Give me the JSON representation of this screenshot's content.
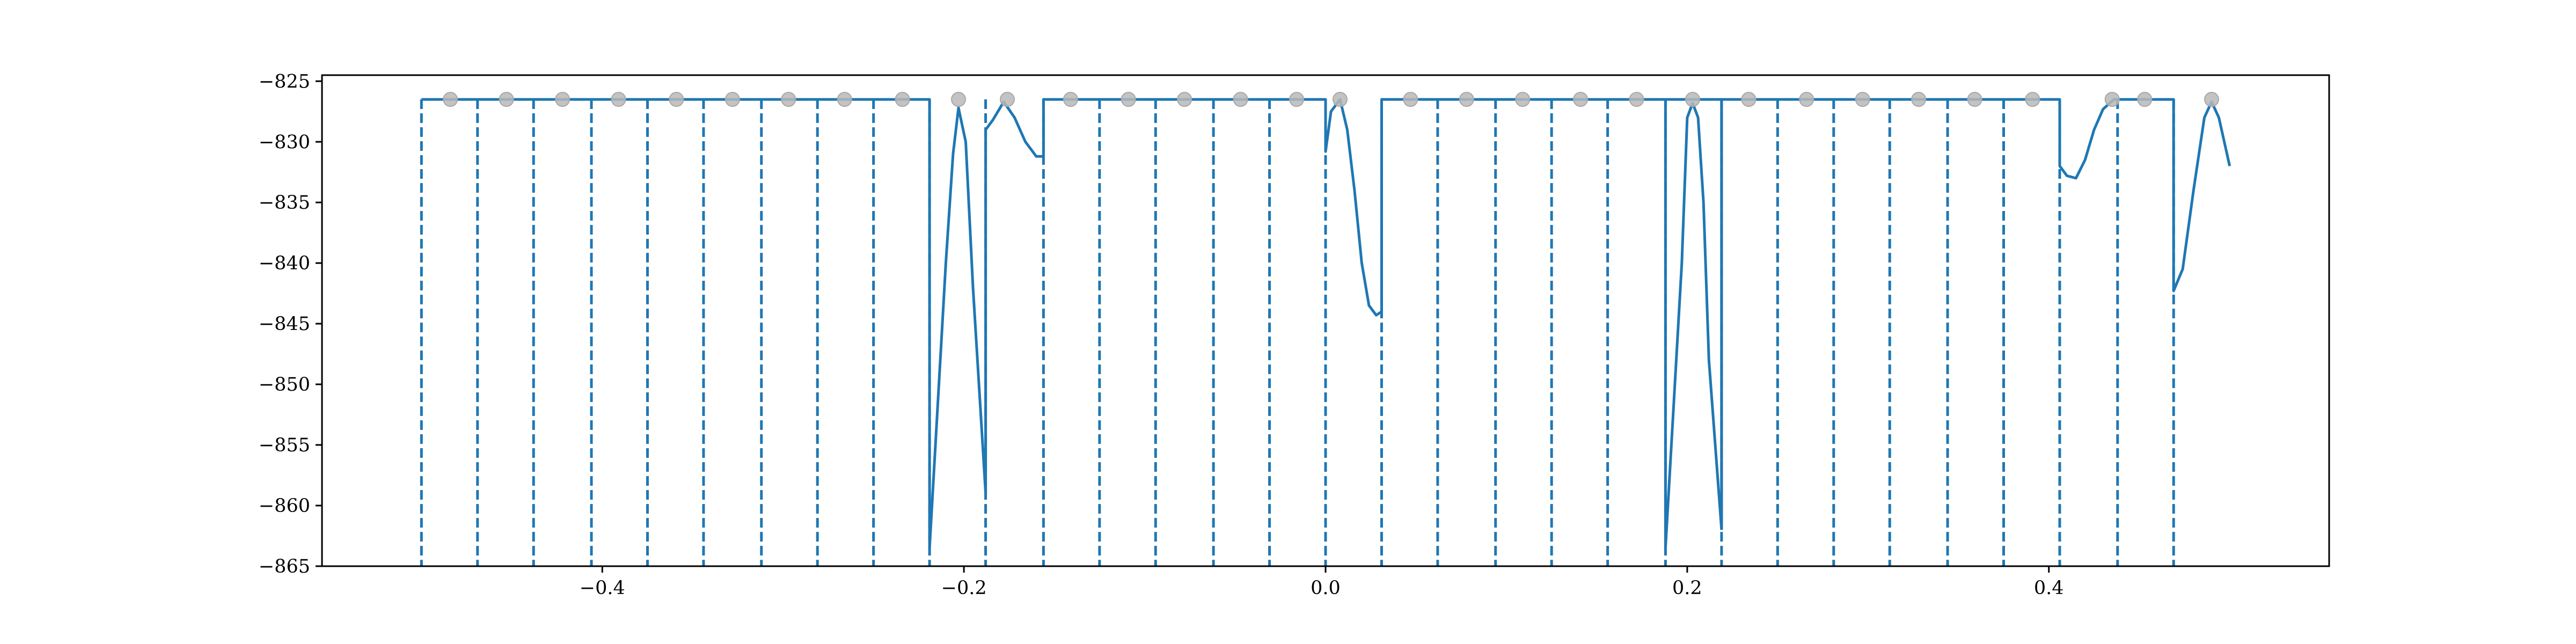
{
  "chart_data": {
    "type": "line",
    "title": "",
    "xlabel": "",
    "ylabel": "",
    "xlim": [
      -0.555,
      0.555
    ],
    "ylim": [
      -865,
      -824.5
    ],
    "x_ticks": [
      -0.4,
      -0.2,
      0.0,
      0.2,
      0.4
    ],
    "x_tick_labels": [
      "−0.4",
      "−0.2",
      "0.0",
      "0.2",
      "0.4"
    ],
    "y_ticks": [
      -825,
      -830,
      -835,
      -840,
      -845,
      -850,
      -855,
      -860,
      -865
    ],
    "y_tick_labels": [
      "−825",
      "−830",
      "−835",
      "−840",
      "−845",
      "−850",
      "−855",
      "−860",
      "−865"
    ],
    "grid": false,
    "legend": "none",
    "colors": {
      "line": "#1f77b4",
      "marker": "#b0b0b0"
    },
    "boundaries": {
      "x": [
        -0.5,
        -0.469,
        -0.438,
        -0.406,
        -0.375,
        -0.344,
        -0.312,
        -0.281,
        -0.25,
        -0.219,
        -0.188,
        -0.156,
        -0.125,
        -0.094,
        -0.062,
        -0.031,
        0.0,
        0.031,
        0.062,
        0.094,
        0.125,
        0.156,
        0.188,
        0.219,
        0.25,
        0.281,
        0.312,
        0.344,
        0.375,
        0.406,
        0.438,
        0.469
      ],
      "y_top": -826.5,
      "y_bottom": -865
    },
    "markers": {
      "x": [
        -0.484,
        -0.453,
        -0.422,
        -0.391,
        -0.359,
        -0.328,
        -0.297,
        -0.266,
        -0.234,
        -0.203,
        -0.176,
        -0.141,
        -0.109,
        -0.078,
        -0.047,
        -0.016,
        0.008,
        0.047,
        0.078,
        0.109,
        0.141,
        0.172,
        0.203,
        0.234,
        0.266,
        0.297,
        0.328,
        0.359,
        0.391,
        0.435,
        0.453,
        0.49
      ],
      "y": [
        -826.5,
        -826.5,
        -826.5,
        -826.5,
        -826.5,
        -826.5,
        -826.5,
        -826.5,
        -826.5,
        -826.5,
        -826.5,
        -826.5,
        -826.5,
        -826.5,
        -826.5,
        -826.5,
        -826.5,
        -826.5,
        -826.5,
        -826.5,
        -826.5,
        -826.5,
        -826.5,
        -826.5,
        -826.5,
        -826.5,
        -826.5,
        -826.5,
        -826.5,
        -826.5,
        -826.5,
        -826.5
      ]
    },
    "series": [
      {
        "x": [
          -0.5,
          -0.219,
          -0.219,
          -0.21,
          -0.206,
          -0.203,
          -0.199,
          -0.195,
          -0.188,
          -0.188,
          -0.184,
          -0.178,
          -0.172,
          -0.166,
          -0.16,
          -0.156,
          -0.156,
          -0.0,
          -0.0,
          0.003,
          0.008,
          0.012,
          0.016,
          0.02,
          0.024,
          0.028,
          0.031,
          0.031,
          0.219,
          0.219
        ],
        "y": [
          -826.5,
          -826.5,
          -863.5,
          -840,
          -831,
          -827.2,
          -830,
          -842,
          -859,
          -829,
          -828.2,
          -826.7,
          -828,
          -830,
          -831.2,
          -831.2,
          -826.5,
          -826.5,
          -830.8,
          -827.5,
          -826.5,
          -829,
          -834,
          -840,
          -843.5,
          -844.3,
          -844,
          -826.5,
          -826.5,
          -862
        ]
      },
      {
        "x": [
          0.188,
          0.188,
          0.197,
          0.2,
          0.203,
          0.206,
          0.209,
          0.212,
          0.219
        ],
        "y": [
          -826.5,
          -863.5,
          -840,
          -828,
          -826.8,
          -828,
          -835,
          -848,
          -862
        ]
      },
      {
        "x": [
          0.219,
          0.219,
          0.406,
          0.406,
          0.41,
          0.415,
          0.42,
          0.425,
          0.43,
          0.436,
          0.436,
          0.469,
          0.469,
          0.474,
          0.48,
          0.486,
          0.49,
          0.494,
          0.5
        ],
        "y": [
          -862,
          -826.5,
          -826.5,
          -832,
          -832.8,
          -833,
          -831.5,
          -829,
          -827.3,
          -826.5,
          -826.5,
          -826.5,
          -842.3,
          -840.5,
          -834,
          -828,
          -826.7,
          -828,
          -832
        ]
      }
    ]
  }
}
